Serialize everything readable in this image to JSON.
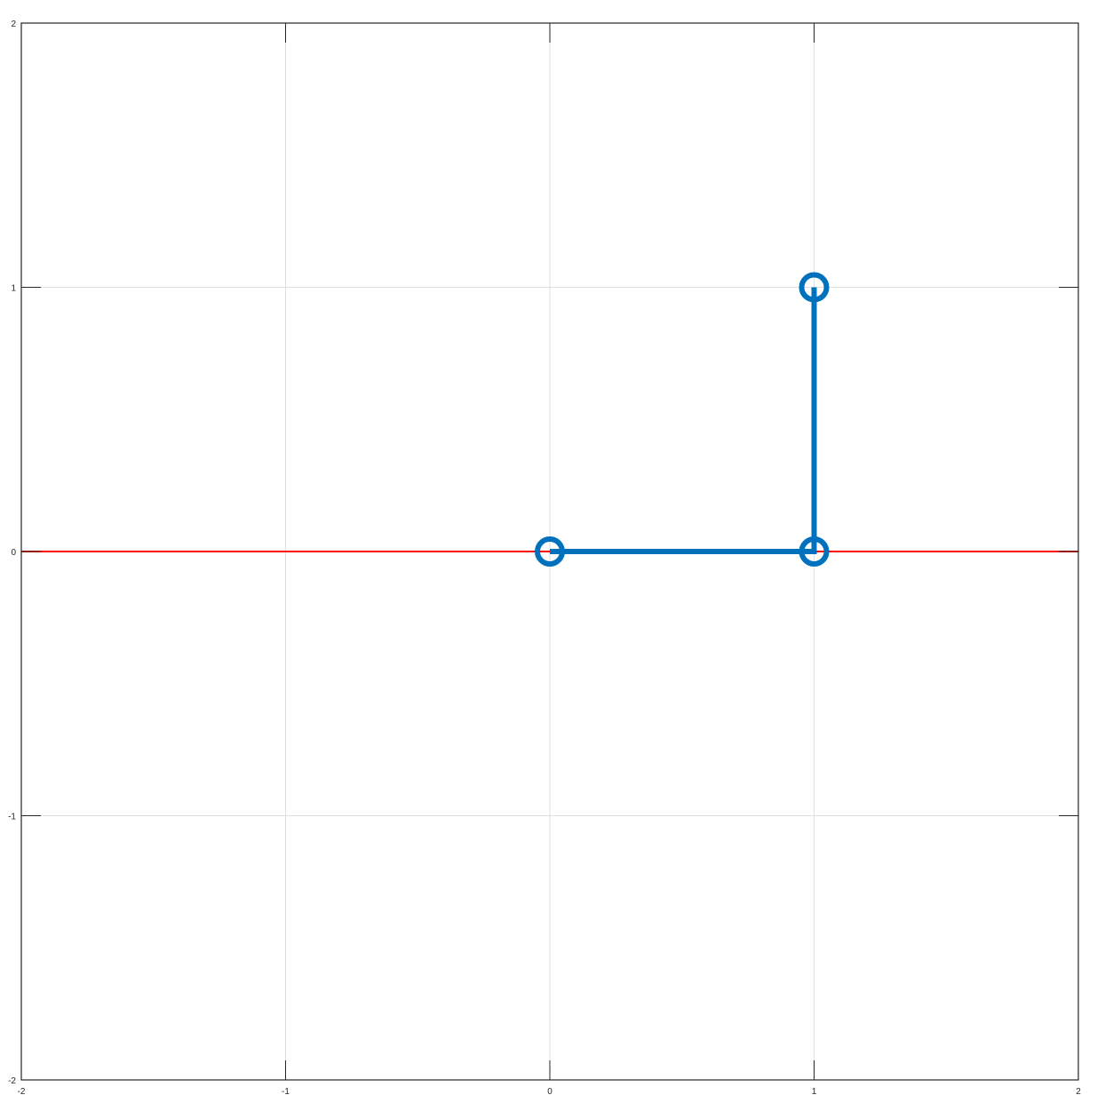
{
  "chart_data": {
    "type": "line",
    "title": "",
    "xlabel": "",
    "ylabel": "",
    "xlim": [
      -2,
      2
    ],
    "ylim": [
      -2,
      2
    ],
    "xticks": [
      -2,
      -1,
      0,
      1,
      2
    ],
    "yticks": [
      -2,
      -1,
      0,
      1,
      2
    ],
    "xtick_labels": [
      "-2",
      "-1",
      "0",
      "1",
      "2"
    ],
    "ytick_labels": [
      "-2",
      "-1",
      "0",
      "1",
      "2"
    ],
    "grid": true,
    "legend": "none",
    "series": [
      {
        "type": "line",
        "x": [
          -2,
          2
        ],
        "y": [
          0,
          0
        ],
        "color": "#ff0000",
        "marker": "none"
      },
      {
        "type": "line",
        "x": [
          0,
          1,
          1
        ],
        "y": [
          0,
          0,
          1
        ],
        "color": "#0072bd",
        "marker": "circle"
      }
    ]
  }
}
